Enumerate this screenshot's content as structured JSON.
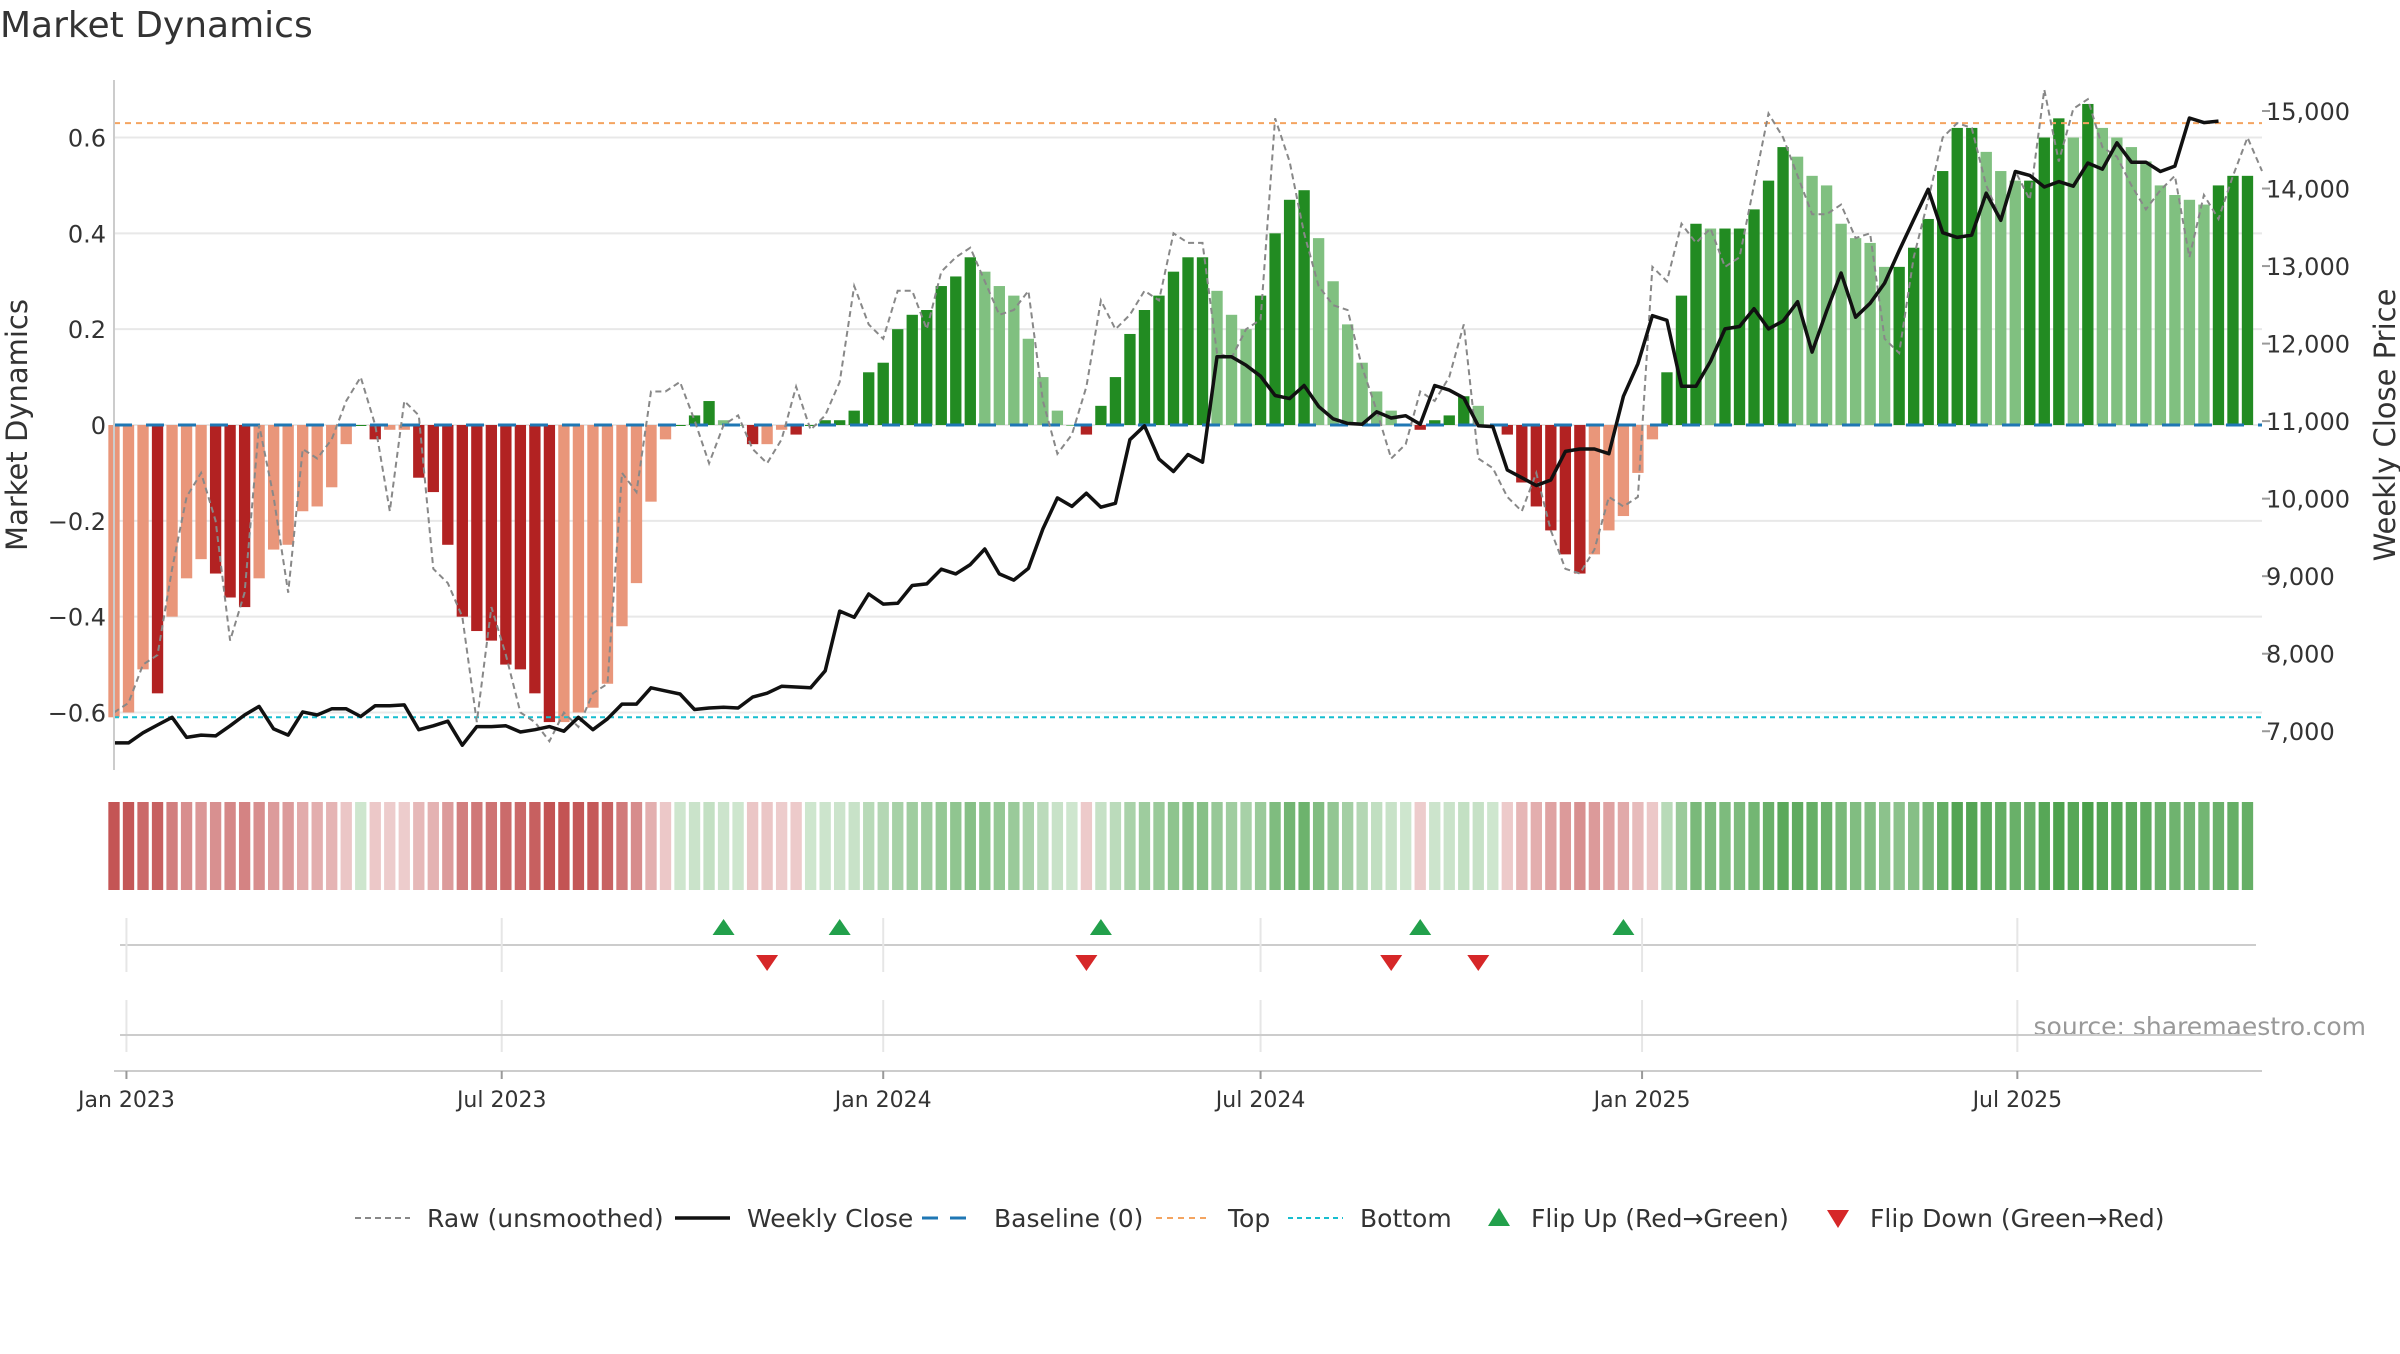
{
  "chart_data": {
    "type": "bar",
    "title": "Market Dynamics",
    "source": "source: sharemaestro.com",
    "ylabel_left": "Market Dynamics",
    "ylabel_right": "Weekly Close Price",
    "ylim_left": [
      -0.72,
      0.72
    ],
    "ylim_right": [
      6500,
      15400
    ],
    "yticks_left": [
      {
        "v": 0.6,
        "label": "0.6"
      },
      {
        "v": 0.4,
        "label": "0.4"
      },
      {
        "v": 0.2,
        "label": "0.2"
      },
      {
        "v": 0,
        "label": "0"
      },
      {
        "v": -0.2,
        "label": "−0.2"
      },
      {
        "v": -0.4,
        "label": "−0.4"
      },
      {
        "v": -0.6,
        "label": "−0.6"
      }
    ],
    "yticks_right": [
      {
        "v": 15000,
        "label": "15,000"
      },
      {
        "v": 14000,
        "label": "14,000"
      },
      {
        "v": 13000,
        "label": "13,000"
      },
      {
        "v": 12000,
        "label": "12,000"
      },
      {
        "v": 11000,
        "label": "11,000"
      },
      {
        "v": 10000,
        "label": "10,000"
      },
      {
        "v": 9000,
        "label": "9,000"
      },
      {
        "v": 8000,
        "label": "8,000"
      },
      {
        "v": 7000,
        "label": "7,000"
      }
    ],
    "xlim": [
      "2022-12-26",
      "2025-10-27"
    ],
    "week_start": "2022-12-26",
    "xticks": [
      {
        "date": "2023-01-01",
        "label": "Jan 2023"
      },
      {
        "date": "2023-07-01",
        "label": "Jul 2023"
      },
      {
        "date": "2024-01-01",
        "label": "Jan 2024"
      },
      {
        "date": "2024-07-01",
        "label": "Jul 2024"
      },
      {
        "date": "2025-01-01",
        "label": "Jan 2025"
      },
      {
        "date": "2025-07-01",
        "label": "Jul 2025"
      }
    ],
    "top_level": 0.63,
    "bottom_level": -0.61,
    "baseline": 0,
    "colors": {
      "neg_strong": "#b22222",
      "neg_weak": "#e9967a",
      "pos_strong": "#228b22",
      "pos_weak": "#80c080",
      "raw": "#888888",
      "close": "#111111",
      "baseline": "#1f77b4",
      "top": "#f4a460",
      "bottom": "#17becf",
      "flip_up": "#22a04b",
      "flip_down": "#d62728",
      "grid": "#e8e8e8"
    },
    "legend_position": "bottom-center",
    "series": [
      {
        "name": "Market Dynamics",
        "values": [
          -0.61,
          -0.6,
          -0.51,
          -0.56,
          -0.4,
          -0.32,
          -0.28,
          -0.31,
          -0.36,
          -0.38,
          -0.32,
          -0.26,
          -0.25,
          -0.18,
          -0.17,
          -0.13,
          -0.04,
          0,
          -0.03,
          -0.01,
          -0.01,
          -0.11,
          -0.14,
          -0.25,
          -0.4,
          -0.43,
          -0.45,
          -0.5,
          -0.51,
          -0.56,
          -0.62,
          -0.62,
          -0.6,
          -0.59,
          -0.54,
          -0.42,
          -0.33,
          -0.16,
          -0.03,
          0,
          0.02,
          0.05,
          0.01,
          0,
          -0.04,
          -0.04,
          -0.01,
          -0.02,
          0,
          0.01,
          0.01,
          0.03,
          0.11,
          0.13,
          0.2,
          0.23,
          0.24,
          0.29,
          0.31,
          0.35,
          0.32,
          0.29,
          0.27,
          0.18,
          0.1,
          0.03,
          0,
          -0.02,
          0.04,
          0.1,
          0.19,
          0.24,
          0.27,
          0.32,
          0.35,
          0.35,
          0.28,
          0.23,
          0.2,
          0.27,
          0.4,
          0.47,
          0.49,
          0.39,
          0.3,
          0.21,
          0.13,
          0.07,
          0.03,
          0,
          -0.01,
          0.01,
          0.02,
          0.06,
          0.04,
          0,
          -0.02,
          -0.12,
          -0.17,
          -0.22,
          -0.27,
          -0.31,
          -0.27,
          -0.22,
          -0.19,
          -0.1,
          -0.03,
          0.11,
          0.27,
          0.42,
          0.41,
          0.41,
          0.41,
          0.45,
          0.51,
          0.58,
          0.56,
          0.52,
          0.5,
          0.42,
          0.39,
          0.38,
          0.33,
          0.33,
          0.37,
          0.43,
          0.53,
          0.62,
          0.62,
          0.57,
          0.53,
          0.51,
          0.51,
          0.6,
          0.64,
          0.6,
          0.67,
          0.62,
          0.6,
          0.58,
          0.55,
          0.5,
          0.48,
          0.47,
          0.46,
          0.5,
          0.52,
          0.52
        ]
      },
      {
        "name": "Raw (unsmoothed)",
        "values": [
          -0.6,
          -0.58,
          -0.5,
          -0.48,
          -0.3,
          -0.15,
          -0.1,
          -0.2,
          -0.45,
          -0.35,
          0,
          -0.15,
          -0.35,
          -0.05,
          -0.07,
          -0.03,
          0.05,
          0.1,
          0,
          -0.18,
          0.05,
          0.02,
          -0.3,
          -0.33,
          -0.4,
          -0.62,
          -0.38,
          -0.48,
          -0.6,
          -0.62,
          -0.66,
          -0.6,
          -0.63,
          -0.56,
          -0.54,
          -0.1,
          -0.14,
          0.07,
          0.07,
          0.09,
          0.01,
          -0.08,
          0,
          0.02,
          -0.05,
          -0.08,
          -0.03,
          0.08,
          -0.01,
          0.02,
          0.09,
          0.29,
          0.21,
          0.18,
          0.28,
          0.28,
          0.2,
          0.32,
          0.35,
          0.37,
          0.3,
          0.23,
          0.24,
          0.28,
          0.05,
          -0.06,
          -0.02,
          0.08,
          0.26,
          0.2,
          0.23,
          0.28,
          0.26,
          0.4,
          0.38,
          0.38,
          0.15,
          0.14,
          0.2,
          0.22,
          0.64,
          0.55,
          0.4,
          0.29,
          0.25,
          0.24,
          0.12,
          0.03,
          -0.07,
          -0.04,
          0.07,
          0.05,
          0.1,
          0.21,
          -0.07,
          -0.09,
          -0.15,
          -0.18,
          -0.1,
          -0.22,
          -0.3,
          -0.31,
          -0.26,
          -0.15,
          -0.17,
          -0.15,
          0.33,
          0.3,
          0.42,
          0.38,
          0.41,
          0.33,
          0.35,
          0.5,
          0.65,
          0.6,
          0.52,
          0.44,
          0.44,
          0.46,
          0.39,
          0.4,
          0.18,
          0.15,
          0.35,
          0.47,
          0.6,
          0.63,
          0.62,
          0.5,
          0.43,
          0.53,
          0.47,
          0.7,
          0.55,
          0.66,
          0.68,
          0.58,
          0.56,
          0.5,
          0.45,
          0.49,
          0.52,
          0.35,
          0.48,
          0.43,
          0.52,
          0.6,
          0.53
        ]
      },
      {
        "name": "Weekly Close",
        "values": [
          6850,
          6850,
          6980,
          7080,
          7180,
          6920,
          6950,
          6940,
          7070,
          7210,
          7320,
          7030,
          6950,
          7250,
          7210,
          7290,
          7290,
          7190,
          7330,
          7330,
          7340,
          7020,
          7070,
          7130,
          6820,
          7060,
          7060,
          7070,
          6990,
          7020,
          7060,
          7000,
          7180,
          7020,
          7160,
          7350,
          7350,
          7560,
          7520,
          7480,
          7280,
          7300,
          7310,
          7300,
          7440,
          7490,
          7580,
          7570,
          7560,
          7780,
          8550,
          8470,
          8770,
          8640,
          8650,
          8880,
          8900,
          9090,
          9030,
          9150,
          9350,
          9030,
          8950,
          9100,
          9610,
          10010,
          9900,
          10070,
          9890,
          9940,
          10760,
          10940,
          10510,
          10350,
          10570,
          10470,
          11830,
          11830,
          11720,
          11580,
          11330,
          11290,
          11460,
          11190,
          11030,
          10970,
          10960,
          11120,
          11040,
          11070,
          10960,
          11460,
          11400,
          11300,
          10940,
          10930,
          10370,
          10270,
          10170,
          10240,
          10610,
          10640,
          10640,
          10580,
          11320,
          11740,
          12360,
          12300,
          11450,
          11450,
          11770,
          12190,
          12220,
          12450,
          12190,
          12290,
          12540,
          11890,
          12420,
          12910,
          12340,
          12520,
          12780,
          13200,
          13600,
          13990,
          13430,
          13370,
          13400,
          13940,
          13590,
          14220,
          14170,
          14020,
          14090,
          14030,
          14330,
          14250,
          14590,
          14340,
          14340,
          14220,
          14290,
          14910,
          14850,
          14870
        ]
      }
    ],
    "flips_up": [
      "2023-10-16",
      "2023-12-11",
      "2024-04-15",
      "2024-09-16",
      "2024-12-23"
    ],
    "flips_down": [
      "2023-11-06",
      "2024-04-08",
      "2024-09-02",
      "2024-10-14"
    ],
    "legend": [
      {
        "key": "raw",
        "label": "Raw (unsmoothed)"
      },
      {
        "key": "close",
        "label": "Weekly Close"
      },
      {
        "key": "baseline",
        "label": "Baseline (0)"
      },
      {
        "key": "top",
        "label": "Top"
      },
      {
        "key": "bottom",
        "label": "Bottom"
      },
      {
        "key": "flip_up",
        "label": "Flip Up (Red→Green)"
      },
      {
        "key": "flip_down",
        "label": "Flip Down (Green→Red)"
      }
    ]
  }
}
